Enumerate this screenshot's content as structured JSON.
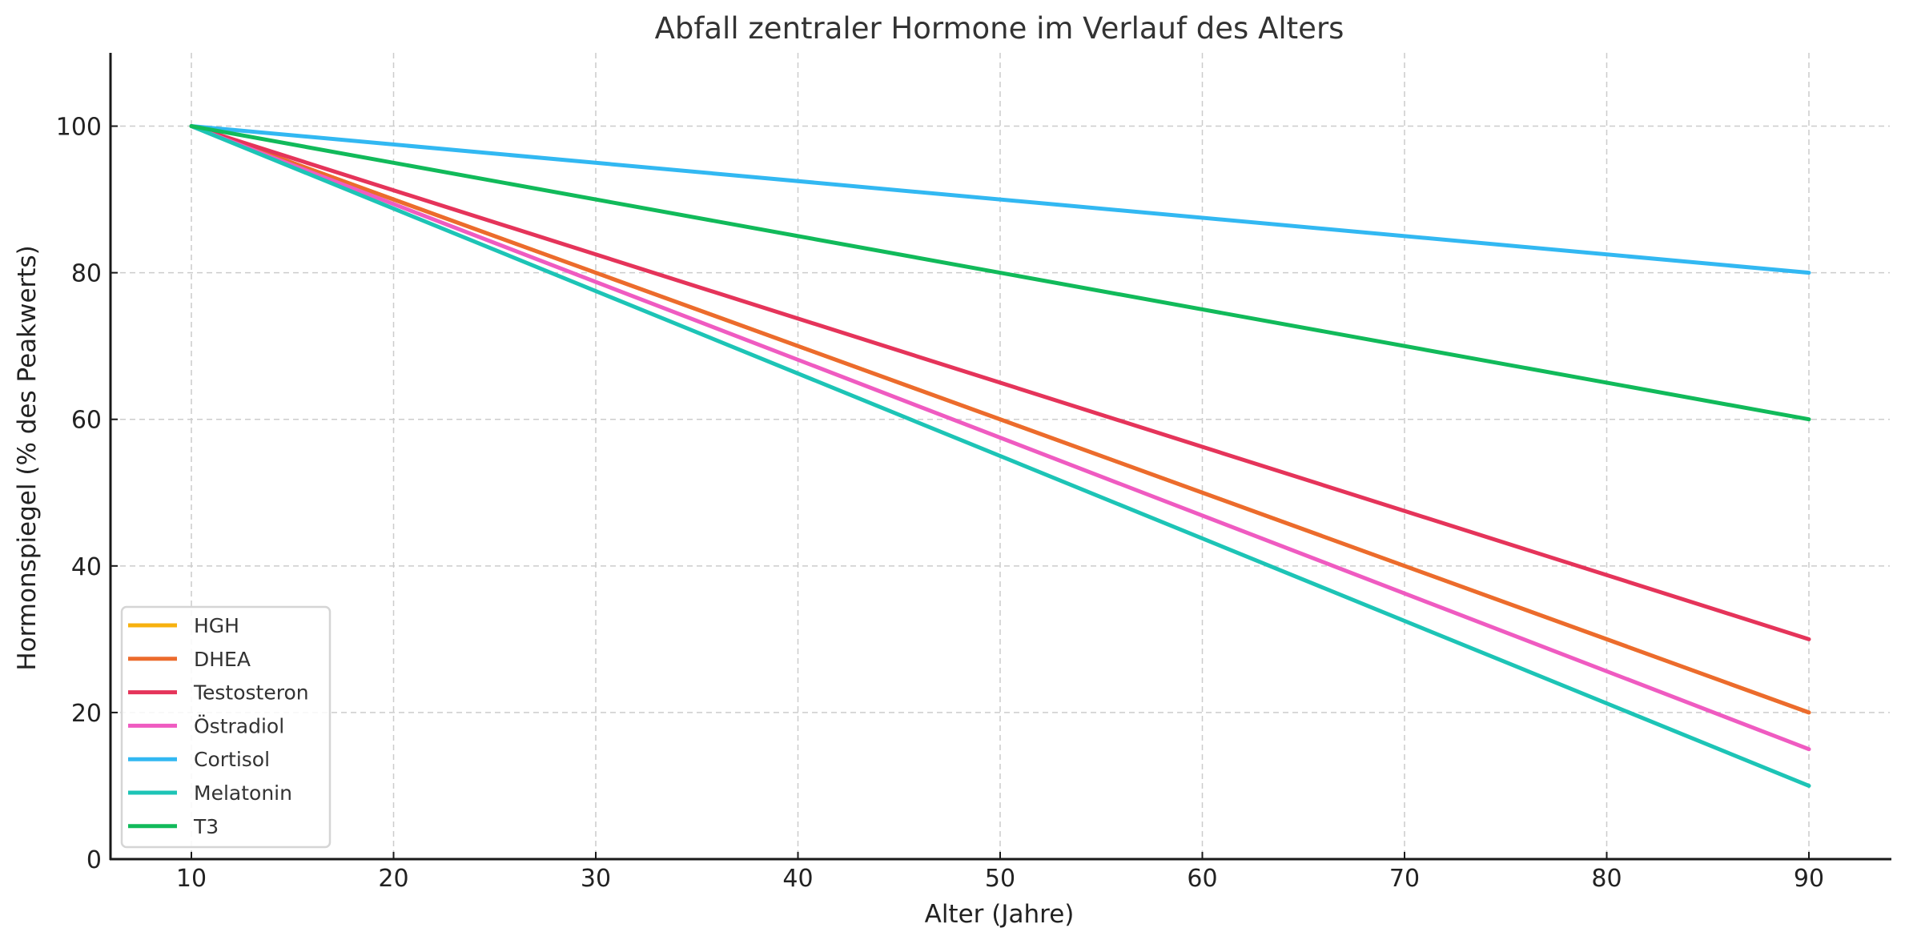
{
  "chart_data": {
    "type": "line",
    "title": "Abfall zentraler Hormone im Verlauf des Alters",
    "xlabel": "Alter (Jahre)",
    "ylabel": "Hormonspiegel (% des Peakwerts)",
    "x": [
      10,
      90
    ],
    "xlim": [
      6,
      94
    ],
    "ylim": [
      0,
      110
    ],
    "xticks": [
      10,
      20,
      30,
      40,
      50,
      60,
      70,
      80,
      90
    ],
    "yticks": [
      0,
      20,
      40,
      60,
      80,
      100
    ],
    "grid": true,
    "legend_position": "lower left",
    "series": [
      {
        "name": "HGH",
        "color": "#f7b10f",
        "values": [
          100,
          20
        ]
      },
      {
        "name": "DHEA",
        "color": "#ec6b2d",
        "values": [
          100,
          20
        ]
      },
      {
        "name": "Testosteron",
        "color": "#e5345a",
        "values": [
          100,
          30
        ]
      },
      {
        "name": "Östradiol",
        "color": "#ef5bc1",
        "values": [
          100,
          15
        ]
      },
      {
        "name": "Cortisol",
        "color": "#32b8f2",
        "values": [
          100,
          80
        ]
      },
      {
        "name": "Melatonin",
        "color": "#1dc4b6",
        "values": [
          100,
          10
        ]
      },
      {
        "name": "T3",
        "color": "#11ba5a",
        "values": [
          100,
          60
        ]
      }
    ]
  }
}
